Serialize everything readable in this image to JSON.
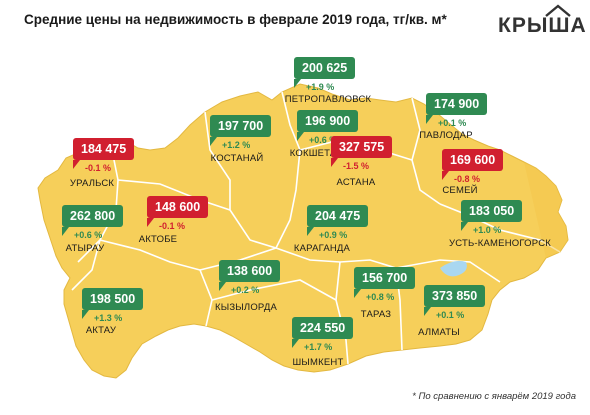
{
  "title": "Средние цены на недвижимость в феврале 2019 года, тг/кв. м*",
  "logo_text": "КРЫША",
  "footnote": "* По сравнению с январём 2019 года",
  "colors": {
    "land": "#f6cf5a",
    "border": "#ffffff",
    "increase": "#2f8a52",
    "decrease": "#d11f2f",
    "water": "#a9d7f0"
  },
  "cities": [
    {
      "name": "ПЕТРОПАВЛОВСК",
      "price": "200 625",
      "change": "+1.9 %",
      "trend": "up"
    },
    {
      "name": "ПАВЛОДАР",
      "price": "174 900",
      "change": "+0.1 %",
      "trend": "up"
    },
    {
      "name": "КОСТАНАЙ",
      "price": "197 700",
      "change": "+1.2 %",
      "trend": "up"
    },
    {
      "name": "КОКШЕТАУ",
      "price": "196 900",
      "change": "+0.6 %",
      "trend": "up"
    },
    {
      "name": "УРАЛЬСК",
      "price": "184 475",
      "change": "-0.1 %",
      "trend": "down"
    },
    {
      "name": "АСТАНА",
      "price": "327 575",
      "change": "-1.5 %",
      "trend": "down"
    },
    {
      "name": "СЕМЕЙ",
      "price": "169 600",
      "change": "-0.8 %",
      "trend": "down"
    },
    {
      "name": "АКТОБЕ",
      "price": "148 600",
      "change": "-0.1 %",
      "trend": "down"
    },
    {
      "name": "АТЫРАУ",
      "price": "262 800",
      "change": "+0.6 %",
      "trend": "up"
    },
    {
      "name": "КАРАГАНДА",
      "price": "204 475",
      "change": "+0.9 %",
      "trend": "up"
    },
    {
      "name": "УСТЬ-КАМЕНОГОРСК",
      "price": "183 050",
      "change": "+1.0 %",
      "trend": "up"
    },
    {
      "name": "КЫЗЫЛОРДА",
      "price": "138 600",
      "change": "+0.2 %",
      "trend": "up"
    },
    {
      "name": "ТАРАЗ",
      "price": "156 700",
      "change": "+0.8 %",
      "trend": "up"
    },
    {
      "name": "АЛМАТЫ",
      "price": "373 850",
      "change": "+0.1 %",
      "trend": "up"
    },
    {
      "name": "АКТАУ",
      "price": "198 500",
      "change": "+1.3 %",
      "trend": "up"
    },
    {
      "name": "ШЫМКЕНТ",
      "price": "224 550",
      "change": "+1.7 %",
      "trend": "up"
    }
  ]
}
